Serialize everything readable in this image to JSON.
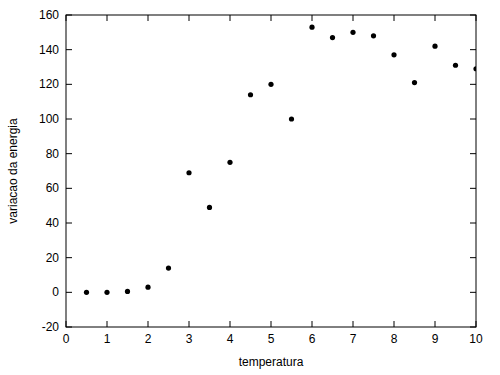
{
  "chart_data": {
    "type": "scatter",
    "x_label": "temperatura",
    "y_label": "variacao da energia",
    "x": [
      0.5,
      1,
      1.5,
      2,
      2.5,
      3,
      3.5,
      4,
      4.5,
      5,
      5.5,
      6,
      6.5,
      7,
      7.5,
      8,
      8.5,
      9,
      9.5,
      10
    ],
    "values": [
      0,
      0,
      0.5,
      3,
      14,
      69,
      49,
      75,
      114,
      120,
      100,
      153,
      147,
      150,
      148,
      137,
      121,
      142,
      131,
      129
    ],
    "color": "#000000",
    "marker": "circle",
    "xlim": [
      0,
      10
    ],
    "xticks": [
      0,
      1,
      2,
      3,
      4,
      5,
      6,
      7,
      8,
      9,
      10
    ],
    "ylim": [
      -20,
      160
    ],
    "yticks": [
      -20,
      0,
      20,
      40,
      60,
      80,
      100,
      120,
      140,
      160
    ],
    "grid": false
  }
}
